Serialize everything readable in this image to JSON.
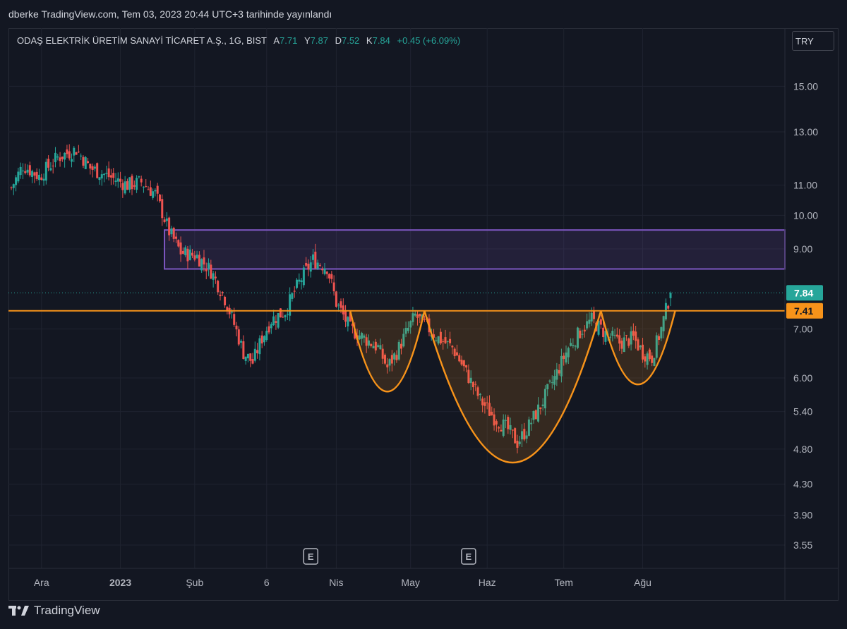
{
  "header": {
    "published": "dberke TradingView.com, Tem 03, 2023 20:44 UTC+3 tarihinde yayınlandı"
  },
  "legend": {
    "name": "ODAŞ ELEKTRİK ÜRETİM SANAYİ TİCARET A.Ş., 1G, BIST",
    "open_label": "A",
    "open": "7.71",
    "high_label": "Y",
    "high": "7.87",
    "low_label": "D",
    "low": "7.52",
    "close_label": "K",
    "close": "7.84",
    "change": "+0.45 (+6.09%)"
  },
  "currency": "TRY",
  "footer": {
    "brand": "TradingView"
  },
  "colors": {
    "up": "#26a69a",
    "down": "#ef5350",
    "purple": "#7e57c2",
    "orange": "#f7931a",
    "last_price": "#26a69a",
    "level": "#f7931a"
  },
  "chart_data": {
    "type": "candlestick",
    "y_scale": "log",
    "ylim": [
      3.3,
      18.0
    ],
    "y_ticks": [
      "15.00",
      "13.00",
      "11.00",
      "10.00",
      "9.00",
      "7.00",
      "6.00",
      "5.40",
      "4.80",
      "4.30",
      "3.90",
      "3.55"
    ],
    "x_ticks": [
      "Ara",
      "2023",
      "Şub",
      "6",
      "Nis",
      "May",
      "Haz",
      "Tem",
      "Ağu"
    ],
    "last_price": {
      "label": "7.84",
      "value": 7.84
    },
    "level_line": {
      "label": "7.41",
      "value": 7.41
    },
    "resistance_zone": {
      "from": 8.45,
      "to": 9.55
    },
    "earnings_marks": [
      "E",
      "E"
    ],
    "cup_pattern": [
      {
        "name": "left-shoulder",
        "rim": 7.41,
        "bottom": 5.75
      },
      {
        "name": "head",
        "rim": 7.41,
        "bottom": 4.6
      },
      {
        "name": "right-shoulder",
        "rim": 7.41,
        "bottom": 5.88
      }
    ],
    "anchors": [
      [
        0,
        10.9
      ],
      [
        5,
        11.7
      ],
      [
        12,
        11.3
      ],
      [
        20,
        12.0
      ],
      [
        28,
        12.3
      ],
      [
        34,
        11.6
      ],
      [
        42,
        11.3
      ],
      [
        50,
        11.0
      ],
      [
        56,
        11.1
      ],
      [
        62,
        10.7
      ],
      [
        68,
        9.5
      ],
      [
        73,
        8.9
      ],
      [
        80,
        8.8
      ],
      [
        86,
        8.4
      ],
      [
        92,
        7.7
      ],
      [
        96,
        7.1
      ],
      [
        100,
        6.5
      ],
      [
        104,
        6.3
      ],
      [
        108,
        6.8
      ],
      [
        112,
        7.2
      ],
      [
        118,
        7.4
      ],
      [
        124,
        8.1
      ],
      [
        130,
        8.7
      ],
      [
        136,
        8.5
      ],
      [
        140,
        7.6
      ],
      [
        146,
        7.0
      ],
      [
        152,
        6.8
      ],
      [
        158,
        6.6
      ],
      [
        162,
        6.2
      ],
      [
        166,
        6.5
      ],
      [
        170,
        6.9
      ],
      [
        174,
        7.3
      ],
      [
        178,
        7.1
      ],
      [
        184,
        6.8
      ],
      [
        190,
        6.6
      ],
      [
        196,
        6.1
      ],
      [
        202,
        5.6
      ],
      [
        208,
        5.3
      ],
      [
        214,
        5.1
      ],
      [
        218,
        4.9
      ],
      [
        222,
        5.1
      ],
      [
        228,
        5.5
      ],
      [
        234,
        6.0
      ],
      [
        240,
        6.6
      ],
      [
        246,
        7.0
      ],
      [
        250,
        7.2
      ],
      [
        256,
        6.9
      ],
      [
        262,
        6.7
      ],
      [
        268,
        6.8
      ],
      [
        272,
        6.5
      ],
      [
        276,
        6.4
      ],
      [
        280,
        7.0
      ],
      [
        284,
        7.84
      ]
    ]
  }
}
